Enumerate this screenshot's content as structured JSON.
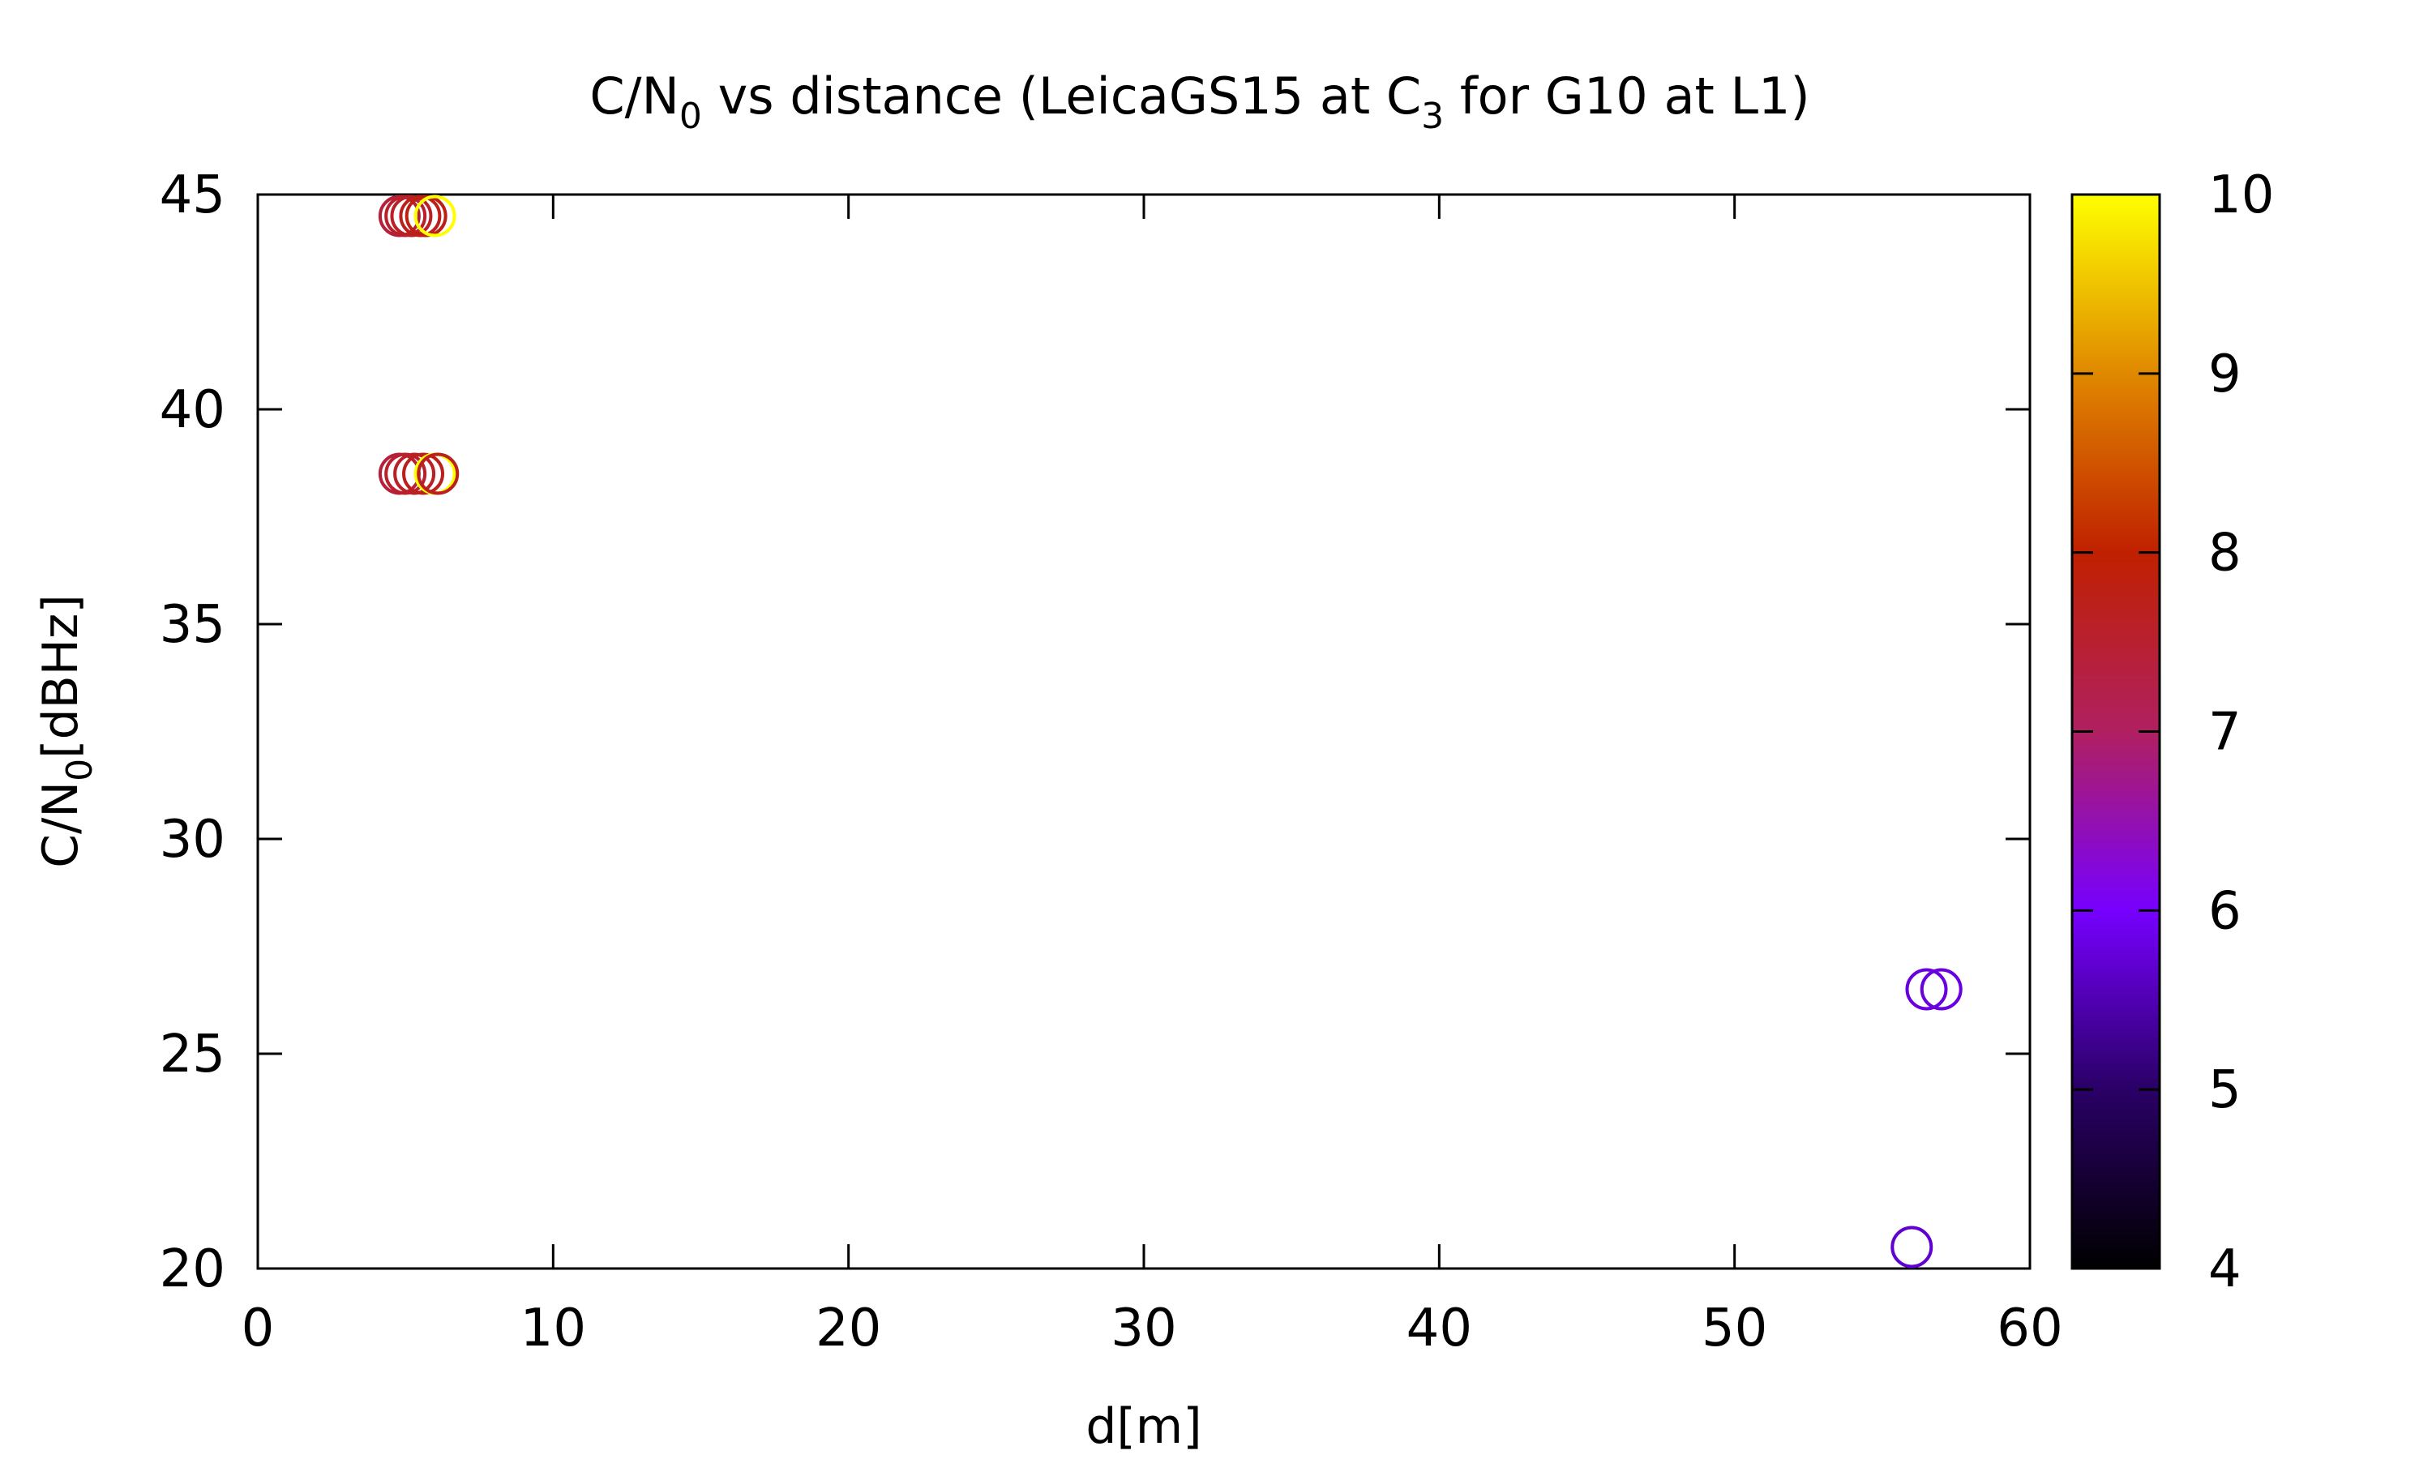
{
  "chart_data": {
    "type": "scatter",
    "title": {
      "prefix": "C/N",
      "sub1": "0",
      "middle": " vs distance (LeicaGS15 at C",
      "sub2": "3",
      "suffix": " for G10 at L1)"
    },
    "xlabel": "d[m]",
    "ylabel": {
      "main": "C/N",
      "sub": "0",
      "suffix": "[dBHz]"
    },
    "xlim": [
      0,
      60
    ],
    "ylim": [
      20,
      45
    ],
    "xticks": [
      0,
      10,
      20,
      30,
      40,
      50,
      60
    ],
    "yticks": [
      20,
      25,
      30,
      35,
      40,
      45
    ],
    "colorbar": {
      "range": [
        4,
        10
      ],
      "ticks": [
        4,
        5,
        6,
        7,
        8,
        9,
        10
      ],
      "palette": "gnuplot (black-purple-red-orange-yellow)"
    },
    "marker": "open circle",
    "grid": false,
    "legend": "none",
    "points": [
      {
        "x": 4.8,
        "y": 44.5,
        "c": 7.4
      },
      {
        "x": 5.0,
        "y": 44.5,
        "c": 7.5
      },
      {
        "x": 5.2,
        "y": 44.5,
        "c": 7.6
      },
      {
        "x": 5.5,
        "y": 44.5,
        "c": 7.7
      },
      {
        "x": 5.7,
        "y": 44.5,
        "c": 7.8
      },
      {
        "x": 6.0,
        "y": 44.5,
        "c": 10.0
      },
      {
        "x": 4.8,
        "y": 38.5,
        "c": 7.4
      },
      {
        "x": 5.0,
        "y": 38.5,
        "c": 7.5
      },
      {
        "x": 5.3,
        "y": 38.5,
        "c": 7.6
      },
      {
        "x": 5.6,
        "y": 38.5,
        "c": 7.7
      },
      {
        "x": 6.0,
        "y": 38.5,
        "c": 10.0
      },
      {
        "x": 6.1,
        "y": 38.5,
        "c": 7.7
      },
      {
        "x": 56.5,
        "y": 26.5,
        "c": 5.8
      },
      {
        "x": 57.0,
        "y": 26.5,
        "c": 5.8
      },
      {
        "x": 56.0,
        "y": 20.5,
        "c": 5.7
      }
    ]
  }
}
